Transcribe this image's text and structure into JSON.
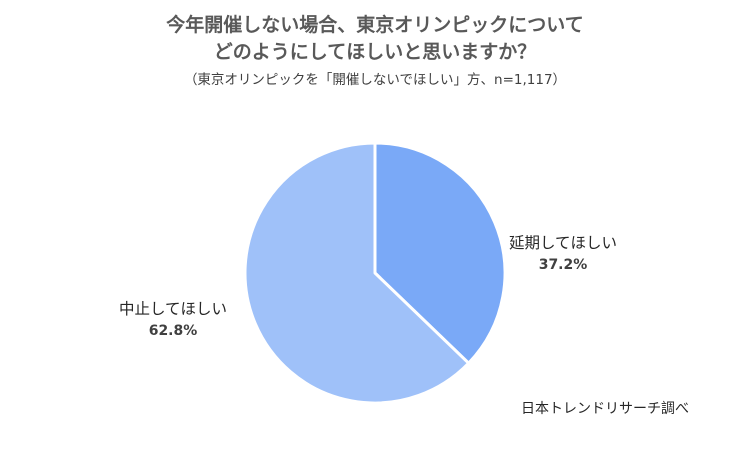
{
  "chart_data": {
    "type": "pie",
    "title_line1": "今年開催しない場合、東京オリンピックについて",
    "title_line2": "どのようにしてほしいと思いますか？",
    "subtitle": "（東京オリンピックを「開催しないでほしい」方、n=1,117）",
    "slices": [
      {
        "label": "延期してほしい",
        "value": 37.2,
        "display": "37.2%",
        "color": "#7aa9f7"
      },
      {
        "label": "中止してほしい",
        "value": 62.8,
        "display": "62.8%",
        "color": "#9fc1f9"
      }
    ],
    "start_angle": "12 o'clock",
    "direction": "clockwise"
  },
  "source": "日本トレンドリサーチ調べ"
}
